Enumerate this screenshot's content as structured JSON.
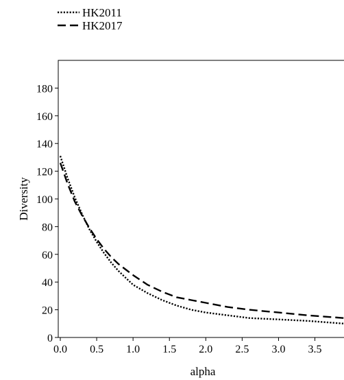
{
  "chart_data": {
    "type": "line",
    "title": "",
    "xlabel": "alpha",
    "ylabel": "Diversity",
    "xlim": [
      0.0,
      3.9
    ],
    "ylim": [
      0,
      200
    ],
    "xticks": [
      "0.0",
      "0.5",
      "1.0",
      "1.5",
      "2.0",
      "2.5",
      "3.0",
      "3.5"
    ],
    "yticks": [
      "0",
      "20",
      "40",
      "60",
      "80",
      "100",
      "120",
      "140",
      "160",
      "180"
    ],
    "grid": false,
    "legend_position": "top-left",
    "series": [
      {
        "name": "HK2011",
        "style": "dotted",
        "color": "#000000",
        "x": [
          0.0,
          0.1,
          0.2,
          0.3,
          0.4,
          0.5,
          0.6,
          0.7,
          0.8,
          0.9,
          1.0,
          1.2,
          1.4,
          1.6,
          1.8,
          2.0,
          2.3,
          2.6,
          3.0,
          3.4,
          3.9
        ],
        "y": [
          131,
          115,
          101,
          89,
          78,
          69,
          61,
          54,
          48,
          43,
          38,
          32,
          27,
          23,
          20,
          18,
          16,
          14,
          13,
          12,
          10
        ]
      },
      {
        "name": "HK2017",
        "style": "dashed",
        "color": "#000000",
        "x": [
          0.0,
          0.1,
          0.2,
          0.3,
          0.4,
          0.5,
          0.6,
          0.7,
          0.8,
          0.9,
          1.0,
          1.2,
          1.4,
          1.6,
          1.8,
          2.0,
          2.3,
          2.6,
          3.0,
          3.4,
          3.9
        ],
        "y": [
          126,
          111,
          98,
          88,
          79,
          71,
          64,
          58,
          53,
          49,
          45,
          38,
          33,
          29,
          27,
          25,
          22,
          20,
          18,
          16,
          14
        ]
      }
    ]
  }
}
